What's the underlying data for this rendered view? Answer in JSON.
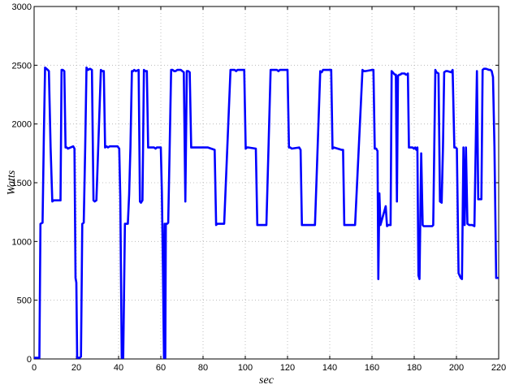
{
  "chart_data": {
    "type": "line",
    "title": "",
    "xlabel": "sec",
    "ylabel": "Watts",
    "xlim": [
      0,
      220
    ],
    "ylim": [
      0,
      3000
    ],
    "xticks": [
      0,
      20,
      40,
      60,
      80,
      100,
      120,
      140,
      160,
      180,
      200,
      220
    ],
    "yticks": [
      0,
      500,
      1000,
      1500,
      2000,
      2500,
      3000
    ],
    "grid": true,
    "line_color": "#0000ff",
    "series": [
      {
        "x": [
          0,
          2.5,
          3,
          4,
          4.6,
          5.2,
          6.5,
          7,
          7.8,
          8.6,
          9.3,
          12.5,
          13,
          13.6,
          14.3,
          14.9,
          15.5,
          16,
          18.5,
          19.1,
          19.6,
          20,
          20.4,
          21.5,
          22.2,
          22.8,
          23.5,
          24.2,
          24.8,
          25.5,
          26.5,
          27.4,
          28.1,
          28.7,
          29.5,
          31.6,
          32.3,
          33,
          33.6,
          34.3,
          35,
          35.8,
          39.5,
          40.3,
          40.8,
          41.5,
          42.2,
          43,
          44.4,
          45,
          45.6,
          46.3,
          46.9,
          47.4,
          48.2,
          49.5,
          50.1,
          50.6,
          51.3,
          52,
          52.6,
          53.4,
          54,
          56.8,
          57.5,
          58.1,
          59,
          60,
          60.5,
          61,
          61.5,
          61.8,
          62.1,
          62.4,
          62.7,
          63,
          63.5,
          64.2,
          64.9,
          65.6,
          66.3,
          67,
          67.8,
          69.5,
          70.2,
          70.9,
          71.6,
          72.3,
          73,
          73.7,
          74.4,
          75.1,
          75.8,
          81,
          81.6,
          82.3,
          85.5,
          86.2,
          86.8,
          90,
          93,
          95,
          95.7,
          96.3,
          99.5,
          100.2,
          100.8,
          101.5,
          105,
          105.7,
          106.3,
          110,
          112,
          115,
          115.7,
          116.4,
          120,
          120.7,
          121.3,
          122,
          125.5,
          126.2,
          126.8,
          130,
          133,
          135.5,
          136.2,
          136.8,
          140,
          140.7,
          141.3,
          142,
          145.6,
          146.3,
          146.9,
          150,
          152,
          155.5,
          156.2,
          156.8,
          160,
          160.7,
          161.3,
          162,
          162.3,
          162.6,
          163,
          163.5,
          164,
          166.5,
          167.1,
          167.7,
          168.2,
          168.8,
          169.3,
          169.8,
          170.3,
          170.8,
          171.3,
          171.8,
          172.3,
          173,
          173.5,
          174,
          175.5,
          176,
          176.5,
          177,
          177.5,
          178,
          178.5,
          179.2,
          179.8,
          180.5,
          181,
          181.5,
          182,
          182.5,
          183.3,
          184,
          184.5,
          185,
          187.5,
          188,
          188.5,
          189,
          189.5,
          190,
          190.5,
          191.5,
          192.2,
          193,
          193.6,
          194.2,
          195,
          195.8,
          197.5,
          198.2,
          199,
          199.5,
          200.2,
          201,
          202,
          202.6,
          203.3,
          203.9,
          204.5,
          205.2,
          206,
          206.8,
          207.5,
          208.5,
          209.1,
          209.7,
          210.3,
          211,
          211.8,
          212.4,
          213,
          214,
          215.5,
          216.1,
          216.7,
          217.3,
          218,
          218.8,
          220
        ],
        "y": [
          10,
          10,
          1150,
          1160,
          1900,
          2480,
          2460,
          2450,
          1800,
          1340,
          1350,
          1350,
          2460,
          2460,
          2450,
          1800,
          1800,
          1790,
          1810,
          1790,
          690,
          650,
          10,
          10,
          20,
          1150,
          1160,
          1800,
          2480,
          2460,
          2470,
          2460,
          1350,
          1340,
          1350,
          2460,
          2450,
          2450,
          1800,
          1810,
          1800,
          1810,
          1810,
          1790,
          1380,
          10,
          10,
          1150,
          1150,
          1400,
          1800,
          2450,
          2450,
          2460,
          2450,
          2460,
          1340,
          1330,
          1350,
          2460,
          2450,
          2450,
          1800,
          1800,
          1790,
          1800,
          1800,
          1800,
          1420,
          780,
          10,
          1150,
          10,
          1150,
          1150,
          1150,
          1160,
          1800,
          2460,
          2460,
          2450,
          2450,
          2460,
          2460,
          2450,
          2440,
          1340,
          2450,
          2450,
          2440,
          1800,
          1800,
          1800,
          1800,
          1800,
          1800,
          1780,
          1140,
          1150,
          1150,
          2460,
          2460,
          2450,
          2460,
          2460,
          1790,
          1800,
          1800,
          1790,
          1140,
          1140,
          1140,
          2460,
          2460,
          2450,
          2460,
          2460,
          1800,
          1800,
          1790,
          1800,
          1780,
          1140,
          1140,
          1140,
          2450,
          2440,
          2460,
          2460,
          2460,
          1790,
          1800,
          1780,
          1780,
          1140,
          1140,
          1140,
          2460,
          2450,
          2450,
          2460,
          2460,
          1790,
          1790,
          1780,
          1770,
          680,
          1410,
          1140,
          1300,
          1130,
          1140,
          1140,
          1140,
          2450,
          2440,
          2430,
          2420,
          2420,
          1340,
          2410,
          2420,
          2420,
          2430,
          2430,
          2420,
          2420,
          2430,
          1800,
          1800,
          1800,
          1800,
          1790,
          1800,
          1780,
          1800,
          710,
          680,
          1750,
          1140,
          1130,
          1130,
          1130,
          1130,
          1130,
          1140,
          1800,
          2460,
          2440,
          2430,
          1340,
          1330,
          1800,
          2440,
          2450,
          2450,
          2440,
          2460,
          1800,
          1800,
          1790,
          730,
          690,
          680,
          1800,
          1140,
          1800,
          1150,
          1140,
          1140,
          1140,
          1130,
          1800,
          2450,
          1360,
          1360,
          1360,
          2460,
          2470,
          2470,
          2460,
          2460,
          2450,
          2400,
          1800,
          690,
          690
        ]
      }
    ]
  }
}
